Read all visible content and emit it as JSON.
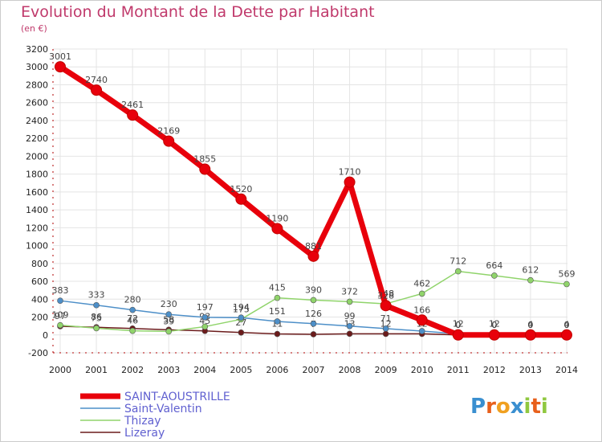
{
  "chart_data": {
    "type": "line",
    "title": "Evolution du Montant de la Dette par Habitant",
    "subtitle": "(en €)",
    "xlabel": "",
    "ylabel": "",
    "ylim": [
      -200,
      3200
    ],
    "y_ticks": [
      -200,
      0,
      200,
      400,
      600,
      800,
      1000,
      1200,
      1400,
      1600,
      1800,
      2000,
      2200,
      2400,
      2600,
      2800,
      3000,
      3200
    ],
    "x": [
      "2000",
      "2001",
      "2002",
      "2003",
      "2004",
      "2005",
      "2006",
      "2007",
      "2008",
      "2009",
      "2010",
      "2011",
      "2012",
      "2013",
      "2014"
    ],
    "series": [
      {
        "name": "SAINT-AOUSTRILLE",
        "color": "#e8000b",
        "values": [
          3001,
          2740,
          2461,
          2169,
          1855,
          1520,
          1190,
          881,
          1710,
          328,
          166,
          0,
          0,
          0,
          0
        ],
        "labels": [
          "3001",
          "2740",
          "2461",
          "2169",
          "1855",
          "1520",
          "1190",
          "881",
          "1710",
          "328",
          "166",
          "0",
          "0",
          "0",
          "0"
        ]
      },
      {
        "name": "Saint-Valentin",
        "color": "#4d8fc8",
        "values": [
          383,
          333,
          280,
          230,
          197,
          194,
          151,
          126,
          99,
          71,
          43,
          12,
          12,
          4,
          4
        ],
        "labels": [
          "383",
          "333",
          "280",
          "230",
          "197",
          "194",
          "151",
          "126",
          "99",
          "71",
          "43",
          "12",
          "12",
          "4",
          "4"
        ]
      },
      {
        "name": "Thizay",
        "color": "#90d46b",
        "values": [
          109,
          75,
          46,
          39,
          93,
          175,
          415,
          390,
          372,
          348,
          462,
          712,
          664,
          612,
          569
        ],
        "labels": [
          "109",
          "75",
          "46",
          "39",
          "93",
          "175",
          "415",
          "390",
          "372",
          "348",
          "462",
          "712",
          "664",
          "612",
          "569"
        ]
      },
      {
        "name": "Lizeray",
        "color": "#6b1b1b",
        "values": [
          97,
          86,
          72,
          58,
          45,
          27,
          11,
          7,
          13,
          12,
          12,
          0,
          0,
          0,
          0
        ],
        "labels": [
          "97",
          "86",
          "72",
          "58",
          "45",
          "27",
          "11",
          "7",
          "13",
          "12",
          "12",
          "0",
          "0",
          "0",
          "0"
        ]
      }
    ],
    "legend_position": "bottom-left"
  },
  "logo": {
    "text": "Proxiti",
    "letters": [
      "P",
      "r",
      "o",
      "x",
      "i",
      "t",
      "i"
    ],
    "colors": [
      "#3a8fd0",
      "#e8601c",
      "#f0a020",
      "#3a8fd0",
      "#90c840",
      "#e8601c",
      "#90c840"
    ]
  }
}
